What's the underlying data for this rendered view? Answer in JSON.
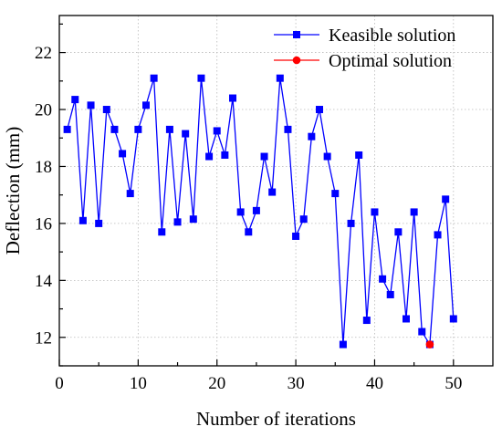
{
  "chart_data": {
    "type": "line",
    "xlabel": "Number of iterations",
    "ylabel": "Deflection (mm)",
    "xlim": [
      0,
      55
    ],
    "ylim": [
      11,
      23.3
    ],
    "xticks": [
      0,
      10,
      20,
      30,
      40,
      50
    ],
    "yticks": [
      12,
      14,
      16,
      18,
      20,
      22
    ],
    "grid": true,
    "legend_position": "top-right",
    "series": [
      {
        "name": "Keasible solution",
        "color": "#0000ff",
        "marker": "square",
        "x": [
          1,
          2,
          3,
          4,
          5,
          6,
          7,
          8,
          9,
          10,
          11,
          12,
          13,
          14,
          15,
          16,
          17,
          18,
          19,
          20,
          21,
          22,
          23,
          24,
          25,
          26,
          27,
          28,
          29,
          30,
          31,
          32,
          33,
          34,
          35,
          36,
          37,
          38,
          39,
          40,
          41,
          42,
          43,
          44,
          45,
          46,
          47,
          48,
          49,
          50
        ],
        "values": [
          19.3,
          20.35,
          16.1,
          20.15,
          16.0,
          20.0,
          19.3,
          18.45,
          17.05,
          19.3,
          20.15,
          21.1,
          15.7,
          19.3,
          16.05,
          19.15,
          16.15,
          21.1,
          18.35,
          19.25,
          18.4,
          20.4,
          16.4,
          15.7,
          16.45,
          18.35,
          17.1,
          21.1,
          19.3,
          15.55,
          16.15,
          19.05,
          20.0,
          18.35,
          17.05,
          11.75,
          16.0,
          18.4,
          12.6,
          16.4,
          14.05,
          13.5,
          15.7,
          12.65,
          16.4,
          12.2,
          11.75,
          15.6,
          16.85,
          12.65
        ]
      },
      {
        "name": "Optimal solution",
        "color": "#ff0000",
        "marker": "circle",
        "x": [
          47
        ],
        "values": [
          11.75
        ]
      }
    ]
  }
}
